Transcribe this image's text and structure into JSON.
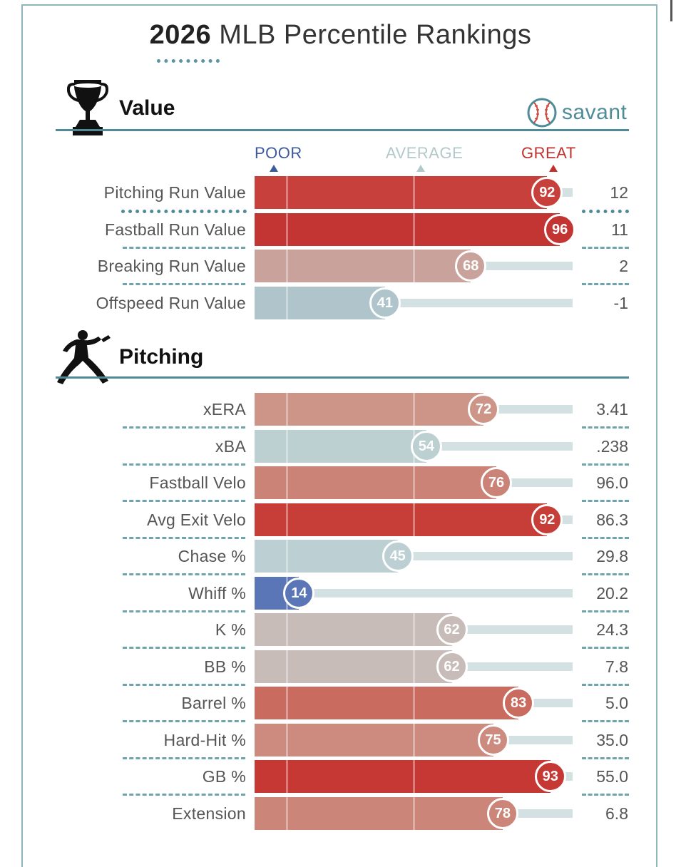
{
  "title": {
    "year": "2026",
    "text": "MLB Percentile Rankings"
  },
  "brand": "savant",
  "scale": {
    "poor": "POOR",
    "average": "AVERAGE",
    "great": "GREAT"
  },
  "colors": {
    "accent": "#4f8b96",
    "poor": "#3d5a9e",
    "great": "#c0312d"
  },
  "sections": [
    {
      "title": "Value",
      "icon": "trophy-icon"
    },
    {
      "title": "Pitching",
      "icon": "pitcher-icon"
    }
  ],
  "chart_data": {
    "type": "bar",
    "xlim": [
      0,
      100
    ],
    "groups": [
      {
        "name": "Value",
        "rows": [
          {
            "label": "Pitching Run Value",
            "percentile": 92,
            "value": "12",
            "color": "#c7403b"
          },
          {
            "label": "Fastball Run Value",
            "percentile": 96,
            "value": "11",
            "color": "#c33533"
          },
          {
            "label": "Breaking Run Value",
            "percentile": 68,
            "value": "2",
            "color": "#c9a29b"
          },
          {
            "label": "Offspeed Run Value",
            "percentile": 41,
            "value": "-1",
            "color": "#afc5cb"
          }
        ]
      },
      {
        "name": "Pitching",
        "rows": [
          {
            "label": "xERA",
            "percentile": 72,
            "value": "3.41",
            "color": "#cd9488"
          },
          {
            "label": "xBA",
            "percentile": 54,
            "value": ".238",
            "color": "#bccfd1"
          },
          {
            "label": "Fastball Velo",
            "percentile": 76,
            "value": "96.0",
            "color": "#cb8377"
          },
          {
            "label": "Avg Exit Velo",
            "percentile": 92,
            "value": "86.3",
            "color": "#c63e37"
          },
          {
            "label": "Chase %",
            "percentile": 45,
            "value": "29.8",
            "color": "#bccfd3"
          },
          {
            "label": "Whiff %",
            "percentile": 14,
            "value": "20.2",
            "color": "#5b76b7"
          },
          {
            "label": "K %",
            "percentile": 62,
            "value": "24.3",
            "color": "#c8bcb8"
          },
          {
            "label": "BB %",
            "percentile": 62,
            "value": "7.8",
            "color": "#c8bcb8"
          },
          {
            "label": "Barrel %",
            "percentile": 83,
            "value": "5.0",
            "color": "#c96b5e"
          },
          {
            "label": "Hard-Hit %",
            "percentile": 75,
            "value": "35.0",
            "color": "#cd8b80"
          },
          {
            "label": "GB %",
            "percentile": 93,
            "value": "55.0",
            "color": "#c63834"
          },
          {
            "label": "Extension",
            "percentile": 78,
            "value": "6.8",
            "color": "#cb8579"
          }
        ]
      }
    ]
  }
}
